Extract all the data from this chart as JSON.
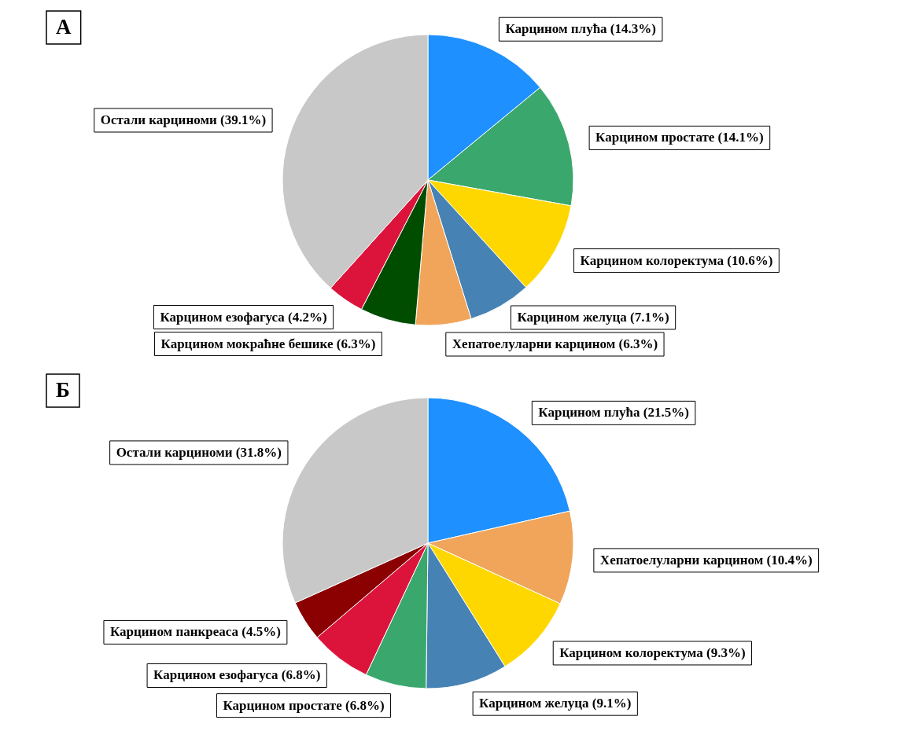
{
  "chart_data": [
    {
      "type": "pie",
      "title": "А",
      "categories": [
        "Карцином плућа (14.3%)",
        "Карцином простате (14.1%)",
        "Карцином колоректума (10.6%)",
        "Карцином желуца (7.1%)",
        "Хепатоелуларни карцином (6.3%)",
        "Карцином мокраћне бешике (6.3%)",
        "Карцином езофагуса (4.2%)",
        "Остали карциноми (39.1%)"
      ],
      "values": [
        14.3,
        14.1,
        10.6,
        7.1,
        6.3,
        6.3,
        4.2,
        39.1
      ],
      "colors": [
        "#1e90ff",
        "#3aa76d",
        "#ffd700",
        "#4682b4",
        "#f0a55a",
        "#004d00",
        "#dc143c",
        "#c8c8c8"
      ],
      "legend": false
    },
    {
      "type": "pie",
      "title": "Б",
      "categories": [
        "Карцином плућа (21.5%)",
        "Хепатоелуларни карцином (10.4%)",
        "Карцином колоректума (9.3%)",
        "Карцином желуца (9.1%)",
        "Карцином простате (6.8%)",
        "Карцином езофагуса (6.8%)",
        "Карцином панкреаса (4.5%)",
        "Остали карциноми (31.8%)"
      ],
      "values": [
        21.5,
        10.4,
        9.3,
        9.1,
        6.8,
        6.8,
        4.5,
        31.8
      ],
      "colors": [
        "#1e90ff",
        "#f0a55a",
        "#ffd700",
        "#4682b4",
        "#3aa76d",
        "#dc143c",
        "#8b0000",
        "#c8c8c8"
      ],
      "legend": false
    }
  ]
}
